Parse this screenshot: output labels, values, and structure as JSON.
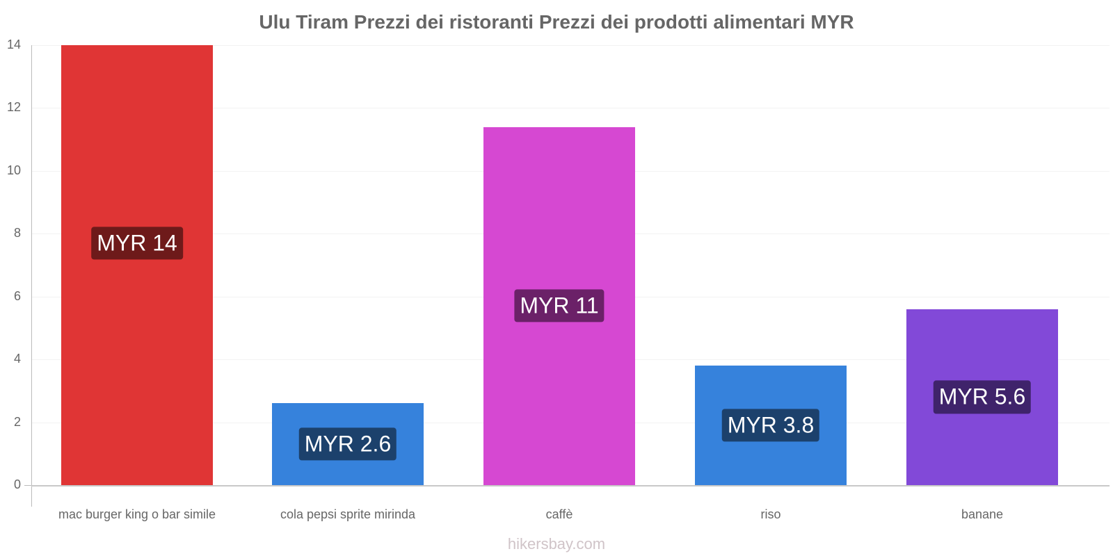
{
  "title": "Ulu Tiram Prezzi dei ristoranti Prezzi dei prodotti alimentari MYR",
  "watermark": "hikersbay.com",
  "y_ticks": [
    "0",
    "2",
    "4",
    "6",
    "8",
    "10",
    "12",
    "14"
  ],
  "bars": [
    {
      "category": "mac burger king o bar simile",
      "value": 14,
      "label": "MYR 14",
      "color": "#e03535",
      "label_bg": "#6e1a1a"
    },
    {
      "category": "cola pepsi sprite mirinda",
      "value": 2.6,
      "label": "MYR 2.6",
      "color": "#3682dc",
      "label_bg": "#1c416c"
    },
    {
      "category": "caffè",
      "value": 11.4,
      "label": "MYR 11",
      "color": "#d648d2",
      "label_bg": "#6b2168"
    },
    {
      "category": "riso",
      "value": 3.8,
      "label": "MYR 3.8",
      "color": "#3682dc",
      "label_bg": "#1c416c"
    },
    {
      "category": "banane",
      "value": 5.6,
      "label": "MYR 5.6",
      "color": "#8249d8",
      "label_bg": "#3f236b"
    }
  ],
  "chart_data": {
    "type": "bar",
    "title": "Ulu Tiram Prezzi dei ristoranti Prezzi dei prodotti alimentari MYR",
    "categories": [
      "mac burger king o bar simile",
      "cola pepsi sprite mirinda",
      "caffè",
      "riso",
      "banane"
    ],
    "values": [
      14,
      2.6,
      11.4,
      3.8,
      5.6
    ],
    "data_labels": [
      "MYR 14",
      "MYR 2.6",
      "MYR 11",
      "MYR 3.8",
      "MYR 5.6"
    ],
    "xlabel": "",
    "ylabel": "",
    "ylim": [
      0,
      14
    ],
    "yticks": [
      0,
      2,
      4,
      6,
      8,
      10,
      12,
      14
    ],
    "grid": true,
    "legend": "none",
    "colors": [
      "#e03535",
      "#3682dc",
      "#d648d2",
      "#3682dc",
      "#8249d8"
    ]
  }
}
